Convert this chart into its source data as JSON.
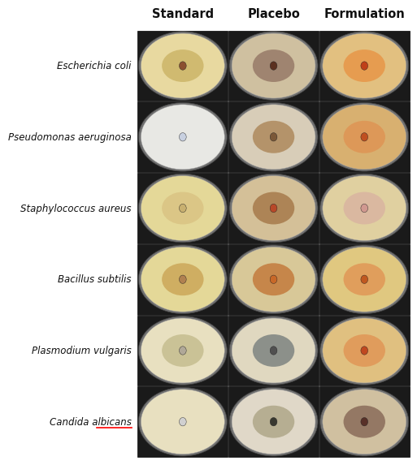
{
  "col_headers": [
    "Standard",
    "Placebo",
    "Formulation"
  ],
  "row_labels": [
    "Escherichia coli",
    "Pseudomonas aeruginosa",
    "Staphylococcus aureus",
    "Bacillus subtilis",
    "Plasmodium vulgaris",
    "Candida albicans"
  ],
  "bg_color": "#ffffff",
  "header_fontsize": 10.5,
  "label_fontsize": 8.5,
  "n_rows": 6,
  "n_cols": 3,
  "petri_bg_colors": [
    [
      "#e8d9a0",
      "#cfc0a0",
      "#e2c080"
    ],
    [
      "#e8e8e4",
      "#d8cdb8",
      "#d8b070"
    ],
    [
      "#e4d898",
      "#d4c098",
      "#e0d0a0"
    ],
    [
      "#e4d898",
      "#d8c898",
      "#e0c880"
    ],
    [
      "#e8e0c0",
      "#e0d8c0",
      "#e0c080"
    ],
    [
      "#e8e0c0",
      "#e0d8c8",
      "#d0c0a0"
    ]
  ],
  "disk_colors": [
    [
      "#8b5030",
      "#5b3020",
      "#c04018"
    ],
    [
      "#c8d0e0",
      "#7b5838",
      "#c05020"
    ],
    [
      "#c8b070",
      "#b84828",
      "#d09890"
    ],
    [
      "#b08050",
      "#c86828",
      "#c05820"
    ],
    [
      "#b0a898",
      "#505050",
      "#c04820"
    ],
    [
      "#d0d0d0",
      "#383830",
      "#583028"
    ]
  ],
  "halo_colors": [
    [
      "#c8b060",
      "#907060",
      "#e89040"
    ],
    [
      "none",
      "#a88050",
      "#e09050"
    ],
    [
      "#d8c080",
      "#a07040",
      "#d8b0a0"
    ],
    [
      "#c8a050",
      "#c07030",
      "#e09050"
    ],
    [
      "#c0b888",
      "#707878",
      "#e09050"
    ],
    [
      "none",
      "#a8a080",
      "#806050"
    ]
  ],
  "plate_rim_color": "#909090"
}
